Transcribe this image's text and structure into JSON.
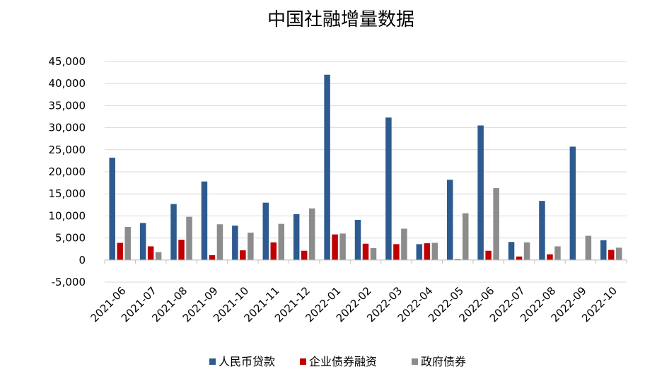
{
  "chart_data": {
    "type": "bar",
    "title": "中国社融增量数据",
    "xlabel": "",
    "ylabel": "",
    "ylim": [
      -5000,
      45000
    ],
    "yticks": [
      -5000,
      0,
      5000,
      10000,
      15000,
      20000,
      25000,
      30000,
      35000,
      40000,
      45000
    ],
    "ytick_labels": [
      "-5,000",
      "0",
      "5,000",
      "10,000",
      "15,000",
      "20,000",
      "25,000",
      "30,000",
      "35,000",
      "40,000",
      "45,000"
    ],
    "grid": "horizontal",
    "legend_position": "bottom",
    "categories": [
      "2021-06",
      "2021-07",
      "2021-08",
      "2021-09",
      "2021-10",
      "2021-11",
      "2021-12",
      "2022-01",
      "2022-02",
      "2022-03",
      "2022-04",
      "2022-05",
      "2022-06",
      "2022-07",
      "2022-08",
      "2022-09",
      "2022-10"
    ],
    "series": [
      {
        "name": "人民币贷款",
        "color": "#2e5b8f",
        "values": [
          23200,
          8400,
          12700,
          17800,
          7800,
          13000,
          10400,
          42000,
          9100,
          32300,
          3600,
          18200,
          30500,
          4100,
          13400,
          25700,
          4500
        ]
      },
      {
        "name": "企业债券融资",
        "color": "#c00000",
        "values": [
          3900,
          3100,
          4600,
          1100,
          2200,
          4000,
          2100,
          5800,
          3700,
          3600,
          3800,
          200,
          2100,
          800,
          1300,
          0,
          2300
        ]
      },
      {
        "name": "政府债券",
        "color": "#8c8c8c",
        "values": [
          7500,
          1800,
          9800,
          8100,
          6200,
          8200,
          11700,
          6000,
          2700,
          7100,
          3900,
          10600,
          16300,
          4000,
          3100,
          5500,
          2800
        ]
      }
    ]
  }
}
